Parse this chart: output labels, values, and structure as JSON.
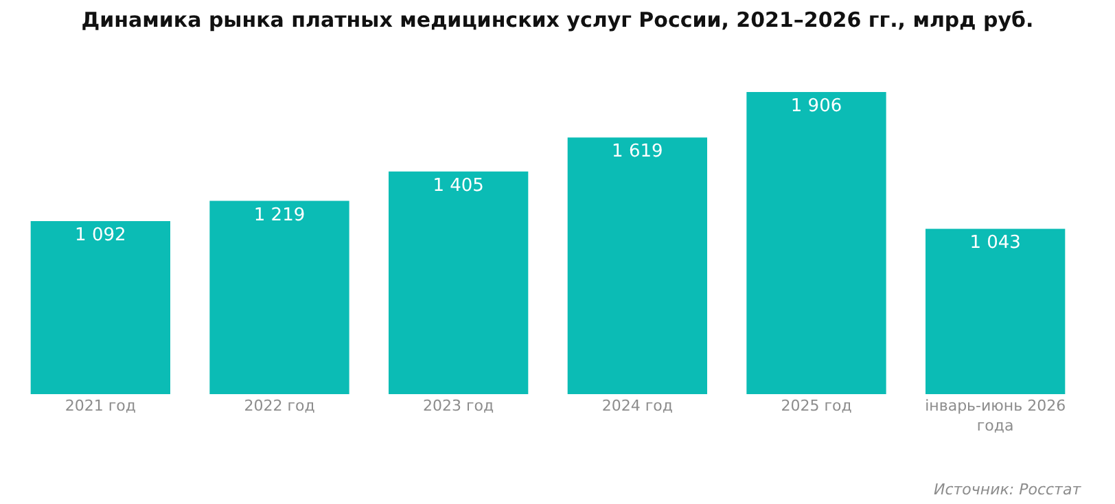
{
  "chart_data": {
    "type": "bar",
    "title": "Динамика рынка платных медицинских услуг России, 2021–2026 гг., млрд руб.",
    "categories": [
      "2021 год",
      "2022 год",
      "2023 год",
      "2024 год",
      "2025 год",
      "інварь-июнь 2026 года"
    ],
    "values": [
      1092,
      1219,
      1405,
      1619,
      1906,
      1043
    ],
    "color": "#0bbcb5",
    "data_labels": true,
    "grid": false,
    "annotations": [
      "Источник: Росстат"
    ]
  }
}
